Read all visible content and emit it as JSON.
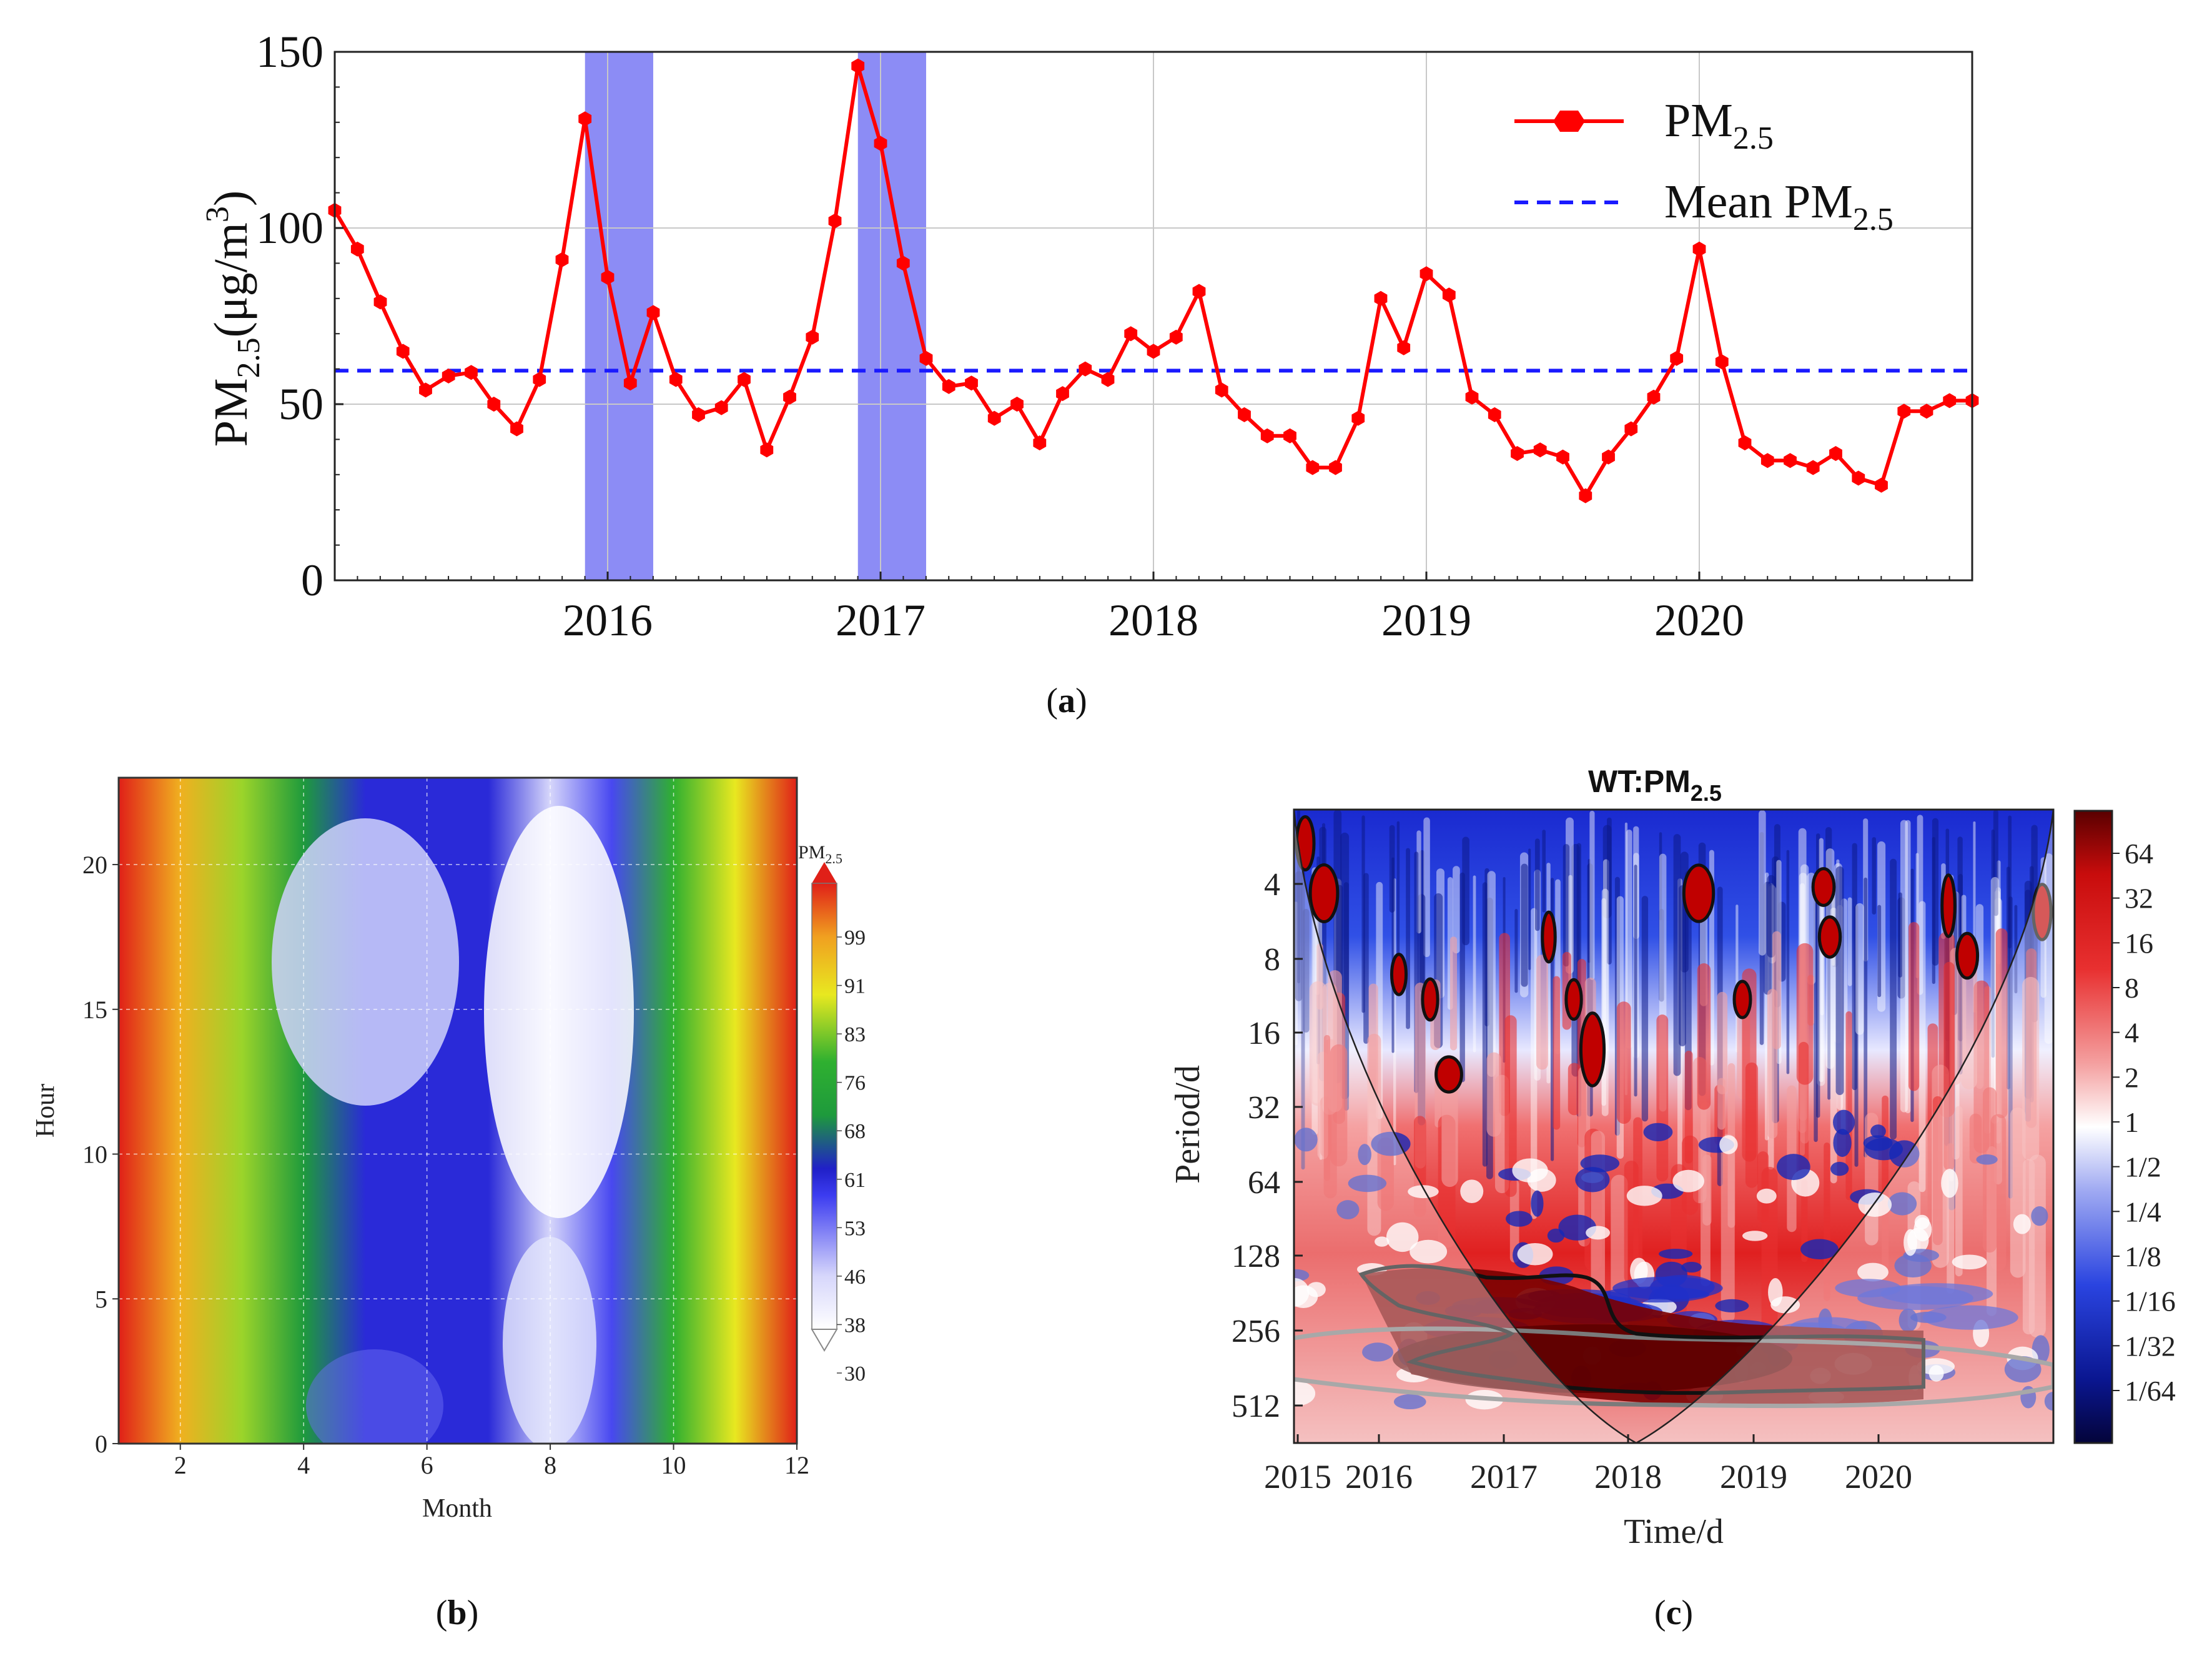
{
  "panel_labels": {
    "a_open": "(",
    "a_letter": "a",
    "a_close": ")",
    "b_open": "(",
    "b_letter": "b",
    "b_close": ")",
    "c_open": "(",
    "c_letter": "c",
    "c_close": ")"
  },
  "colors": {
    "series": "#ff0000",
    "mean": "#1a1aff",
    "highlight": "#8c8cf5"
  },
  "chart_data": [
    {
      "id": "a",
      "type": "line",
      "ylabel_main": "PM",
      "ylabel_sub": "2.5",
      "ylabel_unit": "(μg/m",
      "ylabel_sup": "3",
      "ylabel_close": ")",
      "ylim": [
        0,
        150
      ],
      "yticks": [
        0,
        50,
        100,
        150
      ],
      "ytick_labels": [
        "0",
        "50",
        "100",
        "150"
      ],
      "xlim": [
        2015.0,
        2021.0
      ],
      "xticks": [
        2016,
        2017,
        2018,
        2019,
        2020
      ],
      "xtick_labels": [
        "2016",
        "2017",
        "2018",
        "2019",
        "2020"
      ],
      "grid": true,
      "legend_position": "top-right",
      "legend": {
        "series_main": "PM",
        "series_sub": "2.5",
        "mean_main": "Mean PM",
        "mean_sub": "2.5"
      },
      "mean_value": 59.5,
      "highlight_ranges": [
        [
          2015.917,
          2016.167
        ],
        [
          2016.917,
          2017.167
        ]
      ],
      "series": [
        {
          "name": "PM2.5",
          "x": [
            2015.0,
            2015.083,
            2015.167,
            2015.25,
            2015.333,
            2015.417,
            2015.5,
            2015.583,
            2015.667,
            2015.75,
            2015.833,
            2015.917,
            2016.0,
            2016.083,
            2016.167,
            2016.25,
            2016.333,
            2016.417,
            2016.5,
            2016.583,
            2016.667,
            2016.75,
            2016.833,
            2016.917,
            2017.0,
            2017.083,
            2017.167,
            2017.25,
            2017.333,
            2017.417,
            2017.5,
            2017.583,
            2017.667,
            2017.75,
            2017.833,
            2017.917,
            2018.0,
            2018.083,
            2018.167,
            2018.25,
            2018.333,
            2018.417,
            2018.5,
            2018.583,
            2018.667,
            2018.75,
            2018.833,
            2018.917,
            2019.0,
            2019.083,
            2019.167,
            2019.25,
            2019.333,
            2019.417,
            2019.5,
            2019.583,
            2019.667,
            2019.75,
            2019.833,
            2019.917,
            2020.0,
            2020.083,
            2020.167,
            2020.25,
            2020.333,
            2020.417,
            2020.5,
            2020.583,
            2020.667,
            2020.75,
            2020.833,
            2020.917,
            2021.0
          ],
          "values": [
            105,
            94,
            79,
            65,
            54,
            58,
            59,
            50,
            43,
            57,
            91,
            131,
            86,
            56,
            76,
            57,
            47,
            49,
            57,
            37,
            52,
            69,
            102,
            146,
            124,
            90,
            63,
            55,
            56,
            46,
            50,
            39,
            53,
            60,
            57,
            70,
            65,
            69,
            82,
            54,
            47,
            41,
            41,
            32,
            32,
            46,
            80,
            66,
            87,
            81,
            52,
            47,
            36,
            37,
            35,
            24,
            35,
            43,
            52,
            63,
            94,
            62,
            39,
            34,
            34,
            32,
            36,
            29,
            27,
            48,
            48,
            51,
            51
          ]
        }
      ]
    },
    {
      "id": "b",
      "type": "heatmap",
      "xlabel": "Month",
      "ylabel": "Hour",
      "xlim": [
        1,
        12
      ],
      "ylim": [
        0,
        23
      ],
      "xticks": [
        2,
        4,
        6,
        8,
        10,
        12
      ],
      "xtick_labels": [
        "2",
        "4",
        "6",
        "8",
        "10",
        "12"
      ],
      "yticks": [
        0,
        5,
        10,
        15,
        20
      ],
      "ytick_labels": [
        "0",
        "5",
        "10",
        "15",
        "20"
      ],
      "grid": true,
      "colorbar_title_main": "PM",
      "colorbar_title_sub": "2.5",
      "colorbar_ticks": [
        "99",
        "91",
        "83",
        "76",
        "68",
        "61",
        "53",
        "46",
        "38",
        "30"
      ],
      "monthly_profile": {
        "months": [
          1,
          2,
          3,
          4,
          5,
          6,
          7,
          8,
          9,
          10,
          11,
          12
        ],
        "values": [
          104,
          86,
          70,
          54,
          49,
          49,
          47,
          31,
          45,
          62,
          82,
          104
        ]
      }
    },
    {
      "id": "c",
      "type": "heatmap",
      "title_main": "WT:PM",
      "title_sub": "2.5",
      "xlabel": "Time/d",
      "ylabel": "Period/d",
      "xtick_labels": [
        "2015",
        "2016",
        "2017",
        "2018",
        "2019",
        "2020"
      ],
      "ytick_labels": [
        "4",
        "8",
        "16",
        "32",
        "64",
        "128",
        "256",
        "512"
      ],
      "colorbar_ticks": [
        "64",
        "32",
        "16",
        "8",
        "4",
        "2",
        "1",
        "1/2",
        "1/4",
        "1/8",
        "1/16",
        "1/32",
        "1/64"
      ]
    }
  ]
}
